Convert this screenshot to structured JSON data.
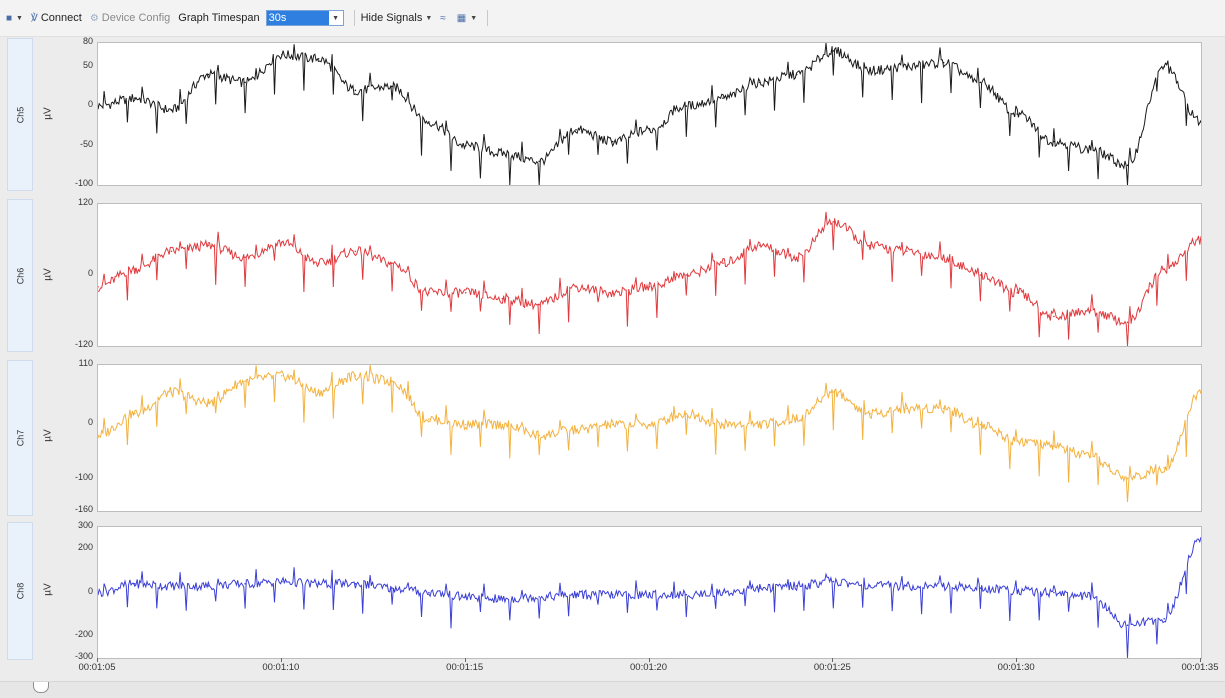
{
  "toolbar": {
    "connect_label": "Connect",
    "device_config_label": "Device Config",
    "graph_timespan_label": "Graph Timespan",
    "graph_timespan_value": "30s",
    "hide_signals_label": "Hide Signals"
  },
  "x_axis": {
    "ticks": [
      "00:01:05",
      "00:01:10",
      "00:01:15",
      "00:01:20",
      "00:01:25",
      "00:01:30",
      "00:01:35"
    ]
  },
  "chart_data": [
    {
      "type": "line",
      "name": "Ch5",
      "ylabel": "µV",
      "ylim": [
        -100,
        80
      ],
      "yticks": [
        80,
        50,
        0,
        -50,
        -100
      ],
      "color": "#1a1a1a",
      "x": [
        "00:01:05",
        "00:01:06",
        "00:01:07",
        "00:01:08",
        "00:01:09",
        "00:01:10",
        "00:01:11",
        "00:01:12",
        "00:01:13",
        "00:01:14",
        "00:01:15",
        "00:01:16",
        "00:01:17",
        "00:01:18",
        "00:01:19",
        "00:01:20",
        "00:01:21",
        "00:01:22",
        "00:01:23",
        "00:01:24",
        "00:01:25",
        "00:01:26",
        "00:01:27",
        "00:01:28",
        "00:01:29",
        "00:01:30",
        "00:01:31",
        "00:01:32",
        "00:01:33",
        "00:01:34",
        "00:01:35"
      ],
      "values": [
        0,
        10,
        -5,
        40,
        30,
        65,
        60,
        20,
        25,
        -20,
        -50,
        -60,
        -70,
        -30,
        -45,
        -30,
        0,
        10,
        30,
        40,
        70,
        45,
        50,
        55,
        30,
        -10,
        -45,
        -55,
        -75,
        50,
        -20
      ]
    },
    {
      "type": "line",
      "name": "Ch6",
      "ylabel": "µV",
      "ylim": [
        -120,
        120
      ],
      "yticks": [
        120,
        0,
        -120
      ],
      "color": "#e03a3e",
      "x": [
        "00:01:05",
        "00:01:06",
        "00:01:07",
        "00:01:08",
        "00:01:09",
        "00:01:10",
        "00:01:11",
        "00:01:12",
        "00:01:13",
        "00:01:14",
        "00:01:15",
        "00:01:16",
        "00:01:17",
        "00:01:18",
        "00:01:19",
        "00:01:20",
        "00:01:21",
        "00:01:22",
        "00:01:23",
        "00:01:24",
        "00:01:25",
        "00:01:26",
        "00:01:27",
        "00:01:28",
        "00:01:29",
        "00:01:30",
        "00:01:31",
        "00:01:32",
        "00:01:33",
        "00:01:34",
        "00:01:35"
      ],
      "values": [
        -20,
        10,
        40,
        50,
        30,
        55,
        20,
        40,
        20,
        -30,
        -30,
        -40,
        -50,
        -20,
        -30,
        -20,
        0,
        20,
        50,
        30,
        90,
        50,
        40,
        30,
        0,
        -30,
        -70,
        -60,
        -80,
        10,
        60
      ]
    },
    {
      "type": "line",
      "name": "Ch7",
      "ylabel": "µV",
      "ylim": [
        -160,
        110
      ],
      "yticks": [
        110,
        0,
        -100,
        -160
      ],
      "color": "#f3b23f",
      "x": [
        "00:01:05",
        "00:01:06",
        "00:01:07",
        "00:01:08",
        "00:01:09",
        "00:01:10",
        "00:01:11",
        "00:01:12",
        "00:01:13",
        "00:01:14",
        "00:01:15",
        "00:01:16",
        "00:01:17",
        "00:01:18",
        "00:01:19",
        "00:01:20",
        "00:01:21",
        "00:01:22",
        "00:01:23",
        "00:01:24",
        "00:01:25",
        "00:01:26",
        "00:01:27",
        "00:01:28",
        "00:01:29",
        "00:01:30",
        "00:01:31",
        "00:01:32",
        "00:01:33",
        "00:01:34",
        "00:01:35"
      ],
      "values": [
        -20,
        20,
        60,
        40,
        80,
        90,
        60,
        90,
        80,
        10,
        0,
        0,
        -20,
        -10,
        0,
        0,
        20,
        0,
        0,
        10,
        60,
        20,
        30,
        30,
        0,
        -30,
        -40,
        -60,
        -100,
        -80,
        60
      ]
    },
    {
      "type": "line",
      "name": "Ch8",
      "ylabel": "µV",
      "ylim": [
        -300,
        300
      ],
      "yticks": [
        300,
        200,
        0,
        -200,
        -300
      ],
      "color": "#3b3fd6",
      "x": [
        "00:01:05",
        "00:01:06",
        "00:01:07",
        "00:01:08",
        "00:01:09",
        "00:01:10",
        "00:01:11",
        "00:01:12",
        "00:01:13",
        "00:01:14",
        "00:01:15",
        "00:01:16",
        "00:01:17",
        "00:01:18",
        "00:01:19",
        "00:01:20",
        "00:01:21",
        "00:01:22",
        "00:01:23",
        "00:01:24",
        "00:01:25",
        "00:01:26",
        "00:01:27",
        "00:01:28",
        "00:01:29",
        "00:01:30",
        "00:01:31",
        "00:01:32",
        "00:01:33",
        "00:01:34",
        "00:01:35"
      ],
      "values": [
        0,
        40,
        30,
        30,
        40,
        50,
        40,
        40,
        20,
        0,
        -20,
        -30,
        -20,
        -10,
        -10,
        -10,
        -10,
        0,
        20,
        30,
        50,
        30,
        30,
        30,
        20,
        10,
        0,
        -20,
        -150,
        -120,
        250
      ]
    }
  ]
}
